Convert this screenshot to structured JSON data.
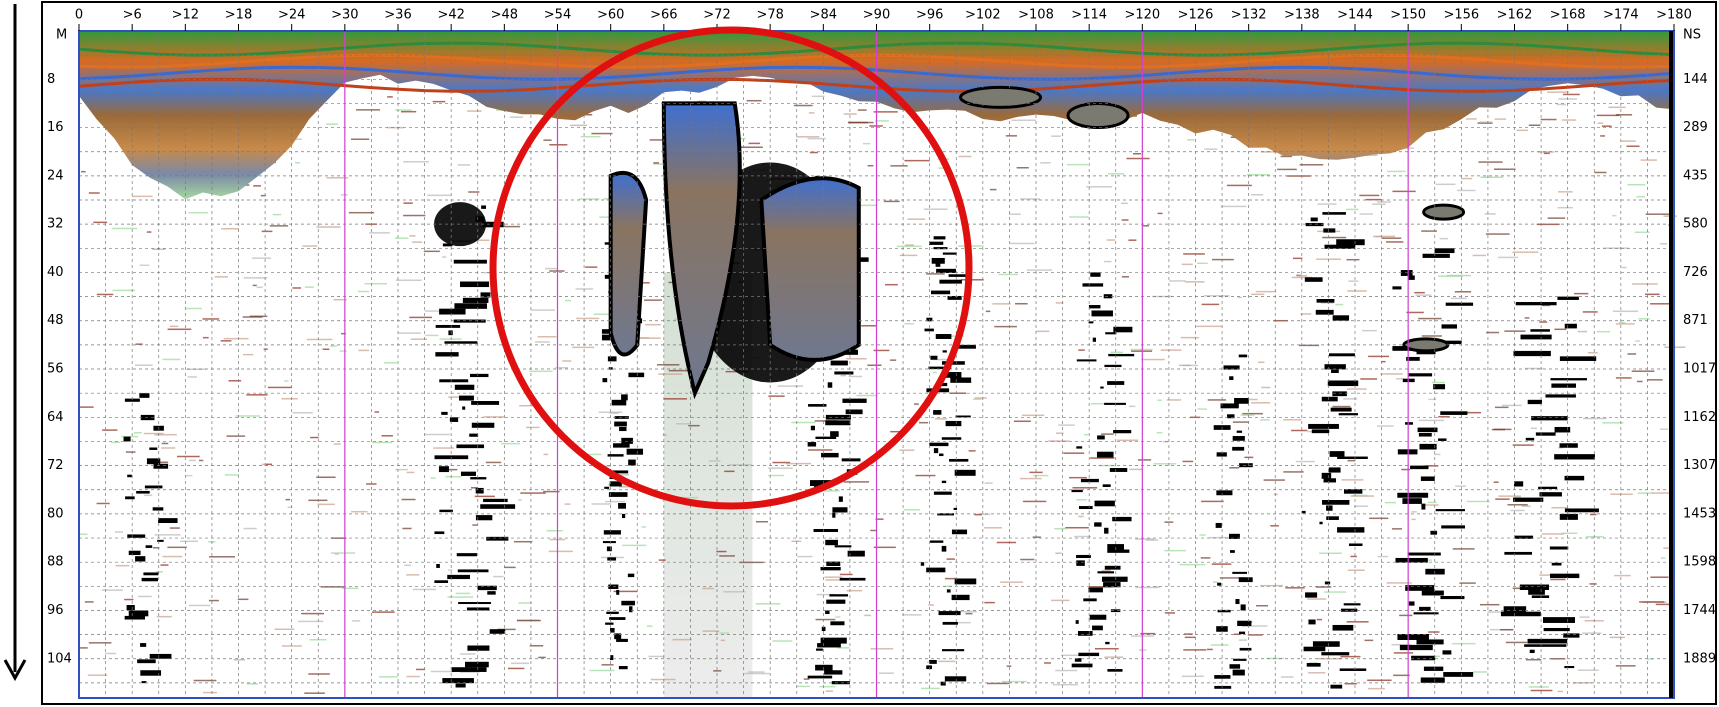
{
  "top_axis": {
    "labels": [
      "0",
      ">6",
      ">12",
      ">18",
      ">24",
      ">30",
      ">36",
      ">42",
      ">48",
      ">54",
      ">60",
      ">66",
      ">72",
      ">78",
      ">84",
      ">90",
      ">96",
      ">102",
      ">108",
      ">114",
      ">120",
      ">126",
      ">132",
      ">138",
      ">144",
      ">150",
      ">156",
      ">162",
      ">168",
      ">174",
      ">180"
    ]
  },
  "left_axis": {
    "unit": "M",
    "labels": [
      8,
      16,
      24,
      32,
      40,
      48,
      56,
      64,
      72,
      80,
      88,
      96,
      104
    ]
  },
  "right_axis": {
    "unit": "NS",
    "labels": [
      144,
      289,
      435,
      580,
      726,
      871,
      1017,
      1162,
      1307,
      1453,
      1598,
      1744,
      1889
    ]
  }
}
